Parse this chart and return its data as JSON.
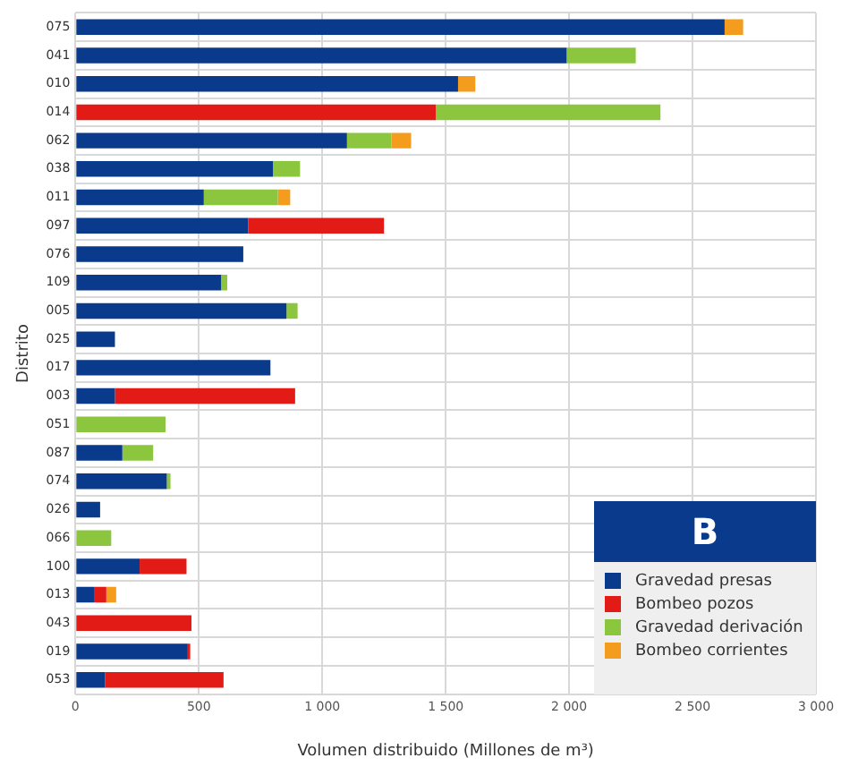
{
  "chart_data": {
    "type": "bar",
    "orientation": "horizontal",
    "stacked": true,
    "xlabel": "Volumen distribuido (Millones de m³)",
    "ylabel": "Distrito",
    "legend_title": "B",
    "legend": "bottom right",
    "grid": true,
    "categories": [
      "075",
      "041",
      "010",
      "014",
      "062",
      "038",
      "011",
      "097",
      "076",
      "109",
      "005",
      "025",
      "017",
      "003",
      "051",
      "087",
      "074",
      "026",
      "066",
      "100",
      "013",
      "043",
      "019",
      "053"
    ],
    "xlim": [
      0,
      3000
    ],
    "xticks": [
      0,
      500,
      {
        "value": 1000,
        "label": "1 000"
      },
      {
        "value": 1500,
        "label": "1 500"
      },
      {
        "value": 2000,
        "label": "2 000"
      },
      {
        "value": 2500,
        "label": "2 500"
      },
      {
        "value": 3000,
        "label": "3 000"
      }
    ],
    "series": [
      {
        "name": "Gravedad presas",
        "color": "#0a3a8c",
        "values": [
          2630,
          1990,
          1550,
          null,
          1100,
          800,
          520,
          700,
          680,
          590,
          855,
          160,
          790,
          160,
          null,
          190,
          370,
          100,
          null,
          260,
          75,
          null,
          455,
          120
        ]
      },
      {
        "name": "Bombeo pozos",
        "color": "#e31b17",
        "values": [
          null,
          null,
          null,
          1460,
          null,
          null,
          null,
          550,
          null,
          null,
          null,
          null,
          null,
          730,
          null,
          null,
          null,
          null,
          null,
          190,
          50,
          470,
          10,
          480
        ]
      },
      {
        "name": "Gravedad derivación",
        "color": "#8cc63f",
        "values": [
          null,
          280,
          null,
          910,
          180,
          110,
          300,
          null,
          null,
          25,
          45,
          null,
          null,
          null,
          365,
          125,
          15,
          null,
          145,
          null,
          null,
          null,
          null,
          null
        ]
      },
      {
        "name": "Bombeo corrientes",
        "color": "#f39c1e",
        "values": [
          75,
          null,
          70,
          null,
          80,
          null,
          50,
          null,
          null,
          null,
          null,
          null,
          null,
          null,
          null,
          null,
          null,
          null,
          null,
          null,
          40,
          null,
          null,
          null
        ]
      }
    ]
  }
}
